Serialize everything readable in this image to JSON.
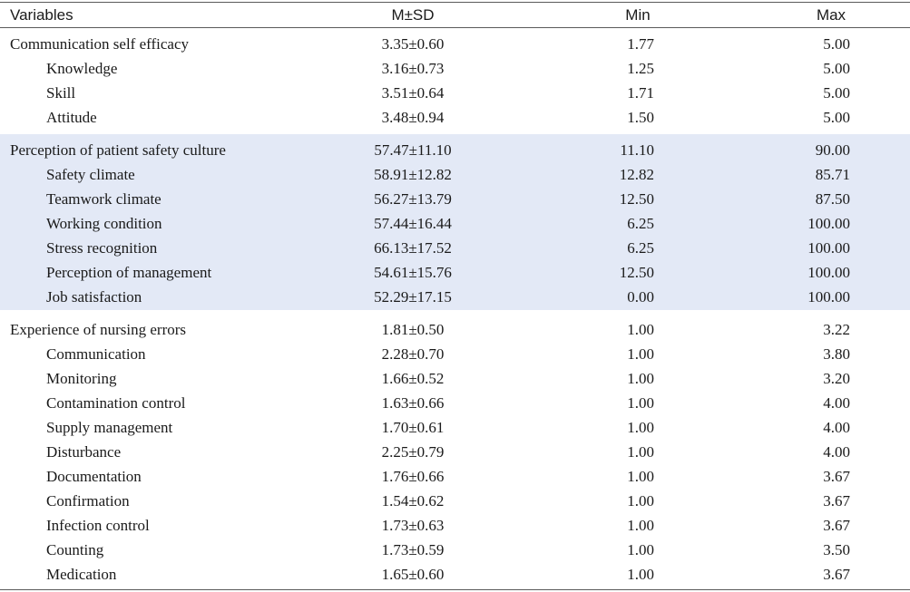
{
  "header": {
    "variables": "Variables",
    "m_sd": "M±SD",
    "min": "Min",
    "max": "Max"
  },
  "sections": [
    {
      "rows": [
        {
          "label": "Communication self efficacy",
          "m_sd": "3.35±0.60",
          "min": "1.77",
          "max": "5.00"
        },
        {
          "label": "Knowledge",
          "m_sd": "3.16±0.73",
          "min": "1.25",
          "max": "5.00"
        },
        {
          "label": "Skill",
          "m_sd": "3.51±0.64",
          "min": "1.71",
          "max": "5.00"
        },
        {
          "label": "Attitude",
          "m_sd": "3.48±0.94",
          "min": "1.50",
          "max": "5.00"
        }
      ]
    },
    {
      "rows": [
        {
          "label": "Perception of patient safety culture",
          "m_sd": "57.47±11.10",
          "min": "11.10",
          "max": "90.00"
        },
        {
          "label": "Safety climate",
          "m_sd": "58.91±12.82",
          "min": "12.82",
          "max": "85.71"
        },
        {
          "label": "Teamwork climate",
          "m_sd": "56.27±13.79",
          "min": "12.50",
          "max": "87.50"
        },
        {
          "label": "Working condition",
          "m_sd": "57.44±16.44",
          "min": "6.25",
          "max": "100.00"
        },
        {
          "label": "Stress recognition",
          "m_sd": "66.13±17.52",
          "min": "6.25",
          "max": "100.00"
        },
        {
          "label": "Perception of management",
          "m_sd": "54.61±15.76",
          "min": "12.50",
          "max": "100.00"
        },
        {
          "label": "Job satisfaction",
          "m_sd": "52.29±17.15",
          "min": "0.00",
          "max": "100.00"
        }
      ]
    },
    {
      "rows": [
        {
          "label": "Experience of nursing errors",
          "m_sd": "1.81±0.50",
          "min": "1.00",
          "max": "3.22"
        },
        {
          "label": "Communication",
          "m_sd": "2.28±0.70",
          "min": "1.00",
          "max": "3.80"
        },
        {
          "label": "Monitoring",
          "m_sd": "1.66±0.52",
          "min": "1.00",
          "max": "3.20"
        },
        {
          "label": "Contamination control",
          "m_sd": "1.63±0.66",
          "min": "1.00",
          "max": "4.00"
        },
        {
          "label": "Supply management",
          "m_sd": "1.70±0.61",
          "min": "1.00",
          "max": "4.00"
        },
        {
          "label": "Disturbance",
          "m_sd": "2.25±0.79",
          "min": "1.00",
          "max": "4.00"
        },
        {
          "label": "Documentation",
          "m_sd": "1.76±0.66",
          "min": "1.00",
          "max": "3.67"
        },
        {
          "label": "Confirmation",
          "m_sd": "1.54±0.62",
          "min": "1.00",
          "max": "3.67"
        },
        {
          "label": "Infection control",
          "m_sd": "1.73±0.63",
          "min": "1.00",
          "max": "3.67"
        },
        {
          "label": "Counting",
          "m_sd": "1.73±0.59",
          "min": "1.00",
          "max": "3.50"
        },
        {
          "label": "Medication",
          "m_sd": "1.65±0.60",
          "min": "1.00",
          "max": "3.67"
        }
      ]
    }
  ]
}
